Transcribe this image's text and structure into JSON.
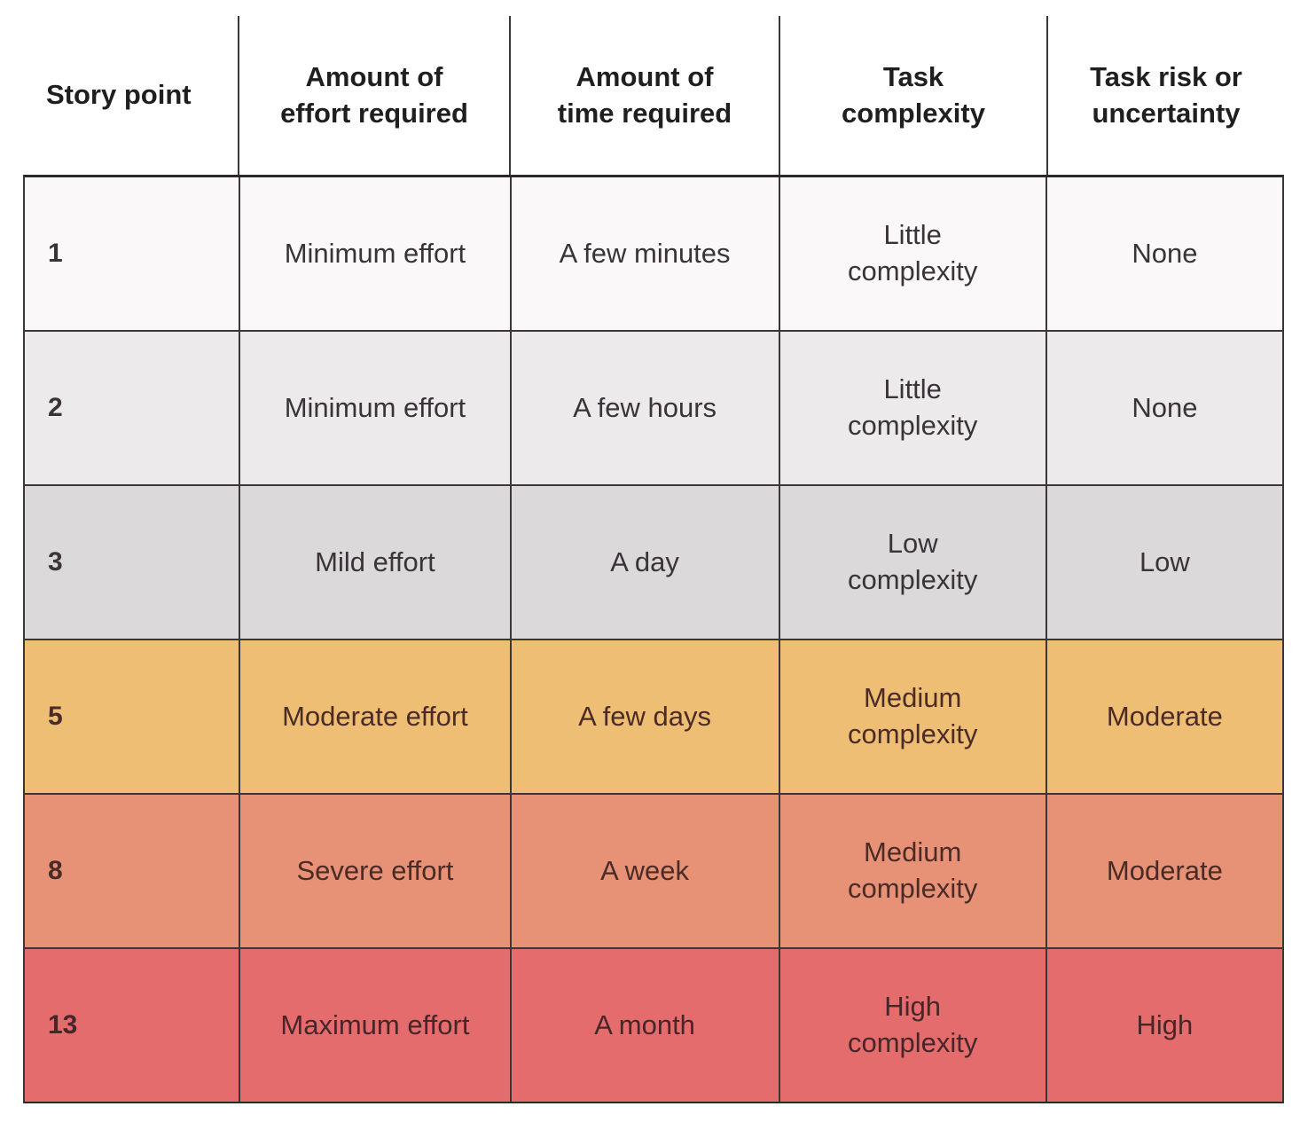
{
  "chart_data": {
    "type": "table",
    "columns": [
      "Story point",
      "Amount of\neffort required",
      "Amount of\ntime required",
      "Task\ncomplexity",
      "Task risk or\nuncertainty"
    ],
    "rows": [
      {
        "story_point": "1",
        "effort": "Minimum effort",
        "time": "A few minutes",
        "complexity": "Little\ncomplexity",
        "risk": "None",
        "row_color": "#faf8f9",
        "text_color": "#3a3438"
      },
      {
        "story_point": "2",
        "effort": "Minimum effort",
        "time": "A few hours",
        "complexity": "Little\ncomplexity",
        "risk": "None",
        "row_color": "#eceaeb",
        "text_color": "#3a3438"
      },
      {
        "story_point": "3",
        "effort": "Mild effort",
        "time": "A day",
        "complexity": "Low\ncomplexity",
        "risk": "Low",
        "row_color": "#dbd9da",
        "text_color": "#3a3438"
      },
      {
        "story_point": "5",
        "effort": "Moderate effort",
        "time": "A few days",
        "complexity": "Medium\ncomplexity",
        "risk": "Moderate",
        "row_color": "#eebe74",
        "text_color": "#4a2b26"
      },
      {
        "story_point": "8",
        "effort": "Severe effort",
        "time": "A week",
        "complexity": "Medium\ncomplexity",
        "risk": "Moderate",
        "row_color": "#e79277",
        "text_color": "#4a2b26"
      },
      {
        "story_point": "13",
        "effort": "Maximum effort",
        "time": "A month",
        "complexity": "High\ncomplexity",
        "risk": "High",
        "row_color": "#e56c6c",
        "text_color": "#47262a"
      }
    ],
    "layout": {
      "grid_line_color": "#3b3739",
      "header_rule_color": "#2a2a2a",
      "background": "#ffffff"
    }
  }
}
